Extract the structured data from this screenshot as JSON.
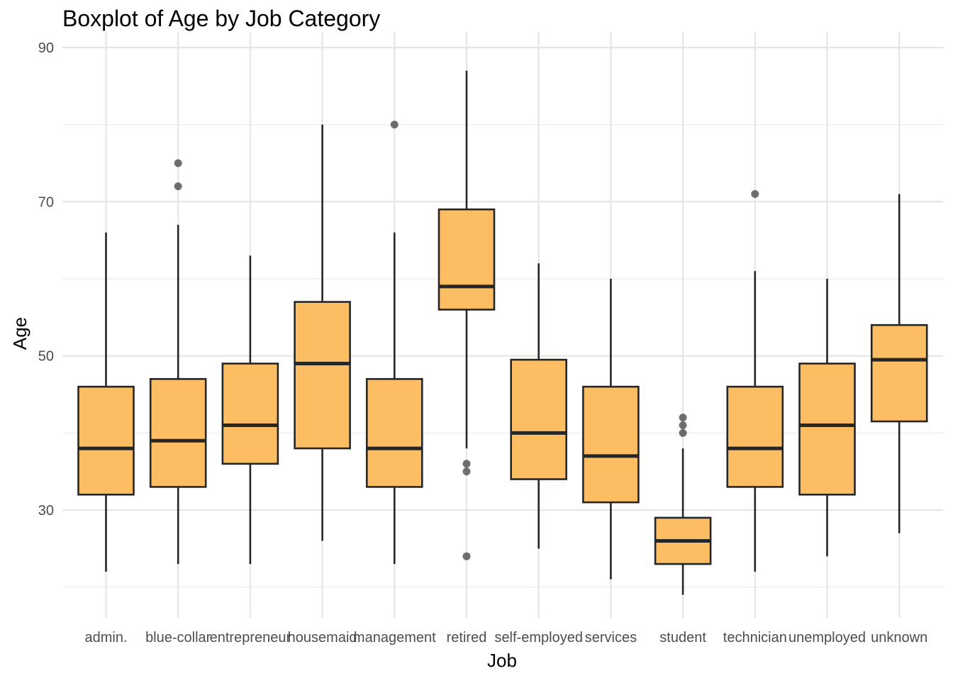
{
  "chart_data": {
    "type": "boxplot",
    "title": "Boxplot of Age by Job Category",
    "xlabel": "Job",
    "ylabel": "Age",
    "ylim": [
      16,
      92
    ],
    "yticks": [
      30,
      50,
      70,
      90
    ],
    "grid": true,
    "box_color": "#fdbe63",
    "box_stroke": "#262626",
    "categories": [
      "admin.",
      "blue-collar",
      "entrepreneur",
      "housemaid",
      "management",
      "retired",
      "self-employed",
      "services",
      "student",
      "technician",
      "unemployed",
      "unknown"
    ],
    "boxes": [
      {
        "category": "admin.",
        "whisker_low": 22,
        "q1": 32,
        "median": 38,
        "q3": 46,
        "whisker_high": 66,
        "outliers": []
      },
      {
        "category": "blue-collar",
        "whisker_low": 23,
        "q1": 33,
        "median": 39,
        "q3": 47,
        "whisker_high": 67,
        "outliers": [
          72,
          75
        ]
      },
      {
        "category": "entrepreneur",
        "whisker_low": 23,
        "q1": 36,
        "median": 41,
        "q3": 49,
        "whisker_high": 63,
        "outliers": []
      },
      {
        "category": "housemaid",
        "whisker_low": 26,
        "q1": 38,
        "median": 49,
        "q3": 57,
        "whisker_high": 80,
        "outliers": []
      },
      {
        "category": "management",
        "whisker_low": 23,
        "q1": 33,
        "median": 38,
        "q3": 47,
        "whisker_high": 66,
        "outliers": [
          80
        ]
      },
      {
        "category": "retired",
        "whisker_low": 38,
        "q1": 56,
        "median": 59,
        "q3": 69,
        "whisker_high": 87,
        "outliers": [
          24,
          35,
          36
        ]
      },
      {
        "category": "self-employed",
        "whisker_low": 25,
        "q1": 34,
        "median": 40,
        "q3": 49.5,
        "whisker_high": 62,
        "outliers": []
      },
      {
        "category": "services",
        "whisker_low": 21,
        "q1": 31,
        "median": 37,
        "q3": 46,
        "whisker_high": 60,
        "outliers": []
      },
      {
        "category": "student",
        "whisker_low": 19,
        "q1": 23,
        "median": 26,
        "q3": 29,
        "whisker_high": 38,
        "outliers": [
          40,
          41,
          42
        ]
      },
      {
        "category": "technician",
        "whisker_low": 22,
        "q1": 33,
        "median": 38,
        "q3": 46,
        "whisker_high": 61,
        "outliers": [
          71
        ]
      },
      {
        "category": "unemployed",
        "whisker_low": 24,
        "q1": 32,
        "median": 41,
        "q3": 49,
        "whisker_high": 60,
        "outliers": []
      },
      {
        "category": "unknown",
        "whisker_low": 27,
        "q1": 41.5,
        "median": 49.5,
        "q3": 54,
        "whisker_high": 71,
        "outliers": []
      }
    ]
  }
}
